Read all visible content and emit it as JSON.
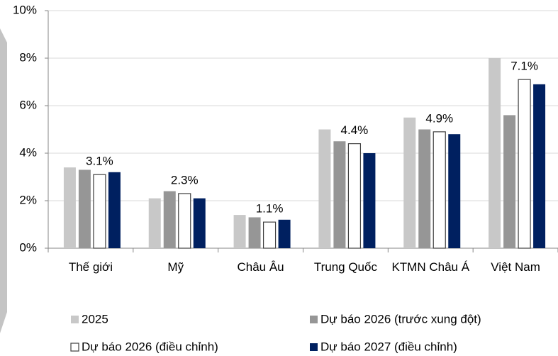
{
  "chart_data": {
    "type": "bar",
    "categories": [
      "Thế giới",
      "Mỹ",
      "Châu Âu",
      "Trung Quốc",
      "KTMN Châu Á",
      "Việt Nam"
    ],
    "series": [
      {
        "name": "2025",
        "color": "#c8c8c8",
        "values": [
          3.4,
          2.1,
          1.4,
          5.0,
          5.5,
          8.0
        ]
      },
      {
        "name": "Dự báo 2026 (trước xung đột)",
        "color": "#969696",
        "values": [
          3.3,
          2.4,
          1.3,
          4.5,
          5.0,
          5.6
        ]
      },
      {
        "name": "Dự báo 2026 (điều chỉnh)",
        "color": "#ffffff",
        "values": [
          3.1,
          2.3,
          1.1,
          4.4,
          4.9,
          7.1
        ],
        "value_labels": [
          "3.1%",
          "2.3%",
          "1.1%",
          "4.4%",
          "4.9%",
          "7.1%"
        ]
      },
      {
        "name": "Dự báo 2027 (điều chỉnh)",
        "color": "#002060",
        "values": [
          3.2,
          2.1,
          1.2,
          4.0,
          4.8,
          6.9
        ]
      }
    ],
    "ylim": [
      0,
      10
    ],
    "yticks": [
      {
        "value": 0,
        "label": "0%"
      },
      {
        "value": 2,
        "label": "2%"
      },
      {
        "value": 4,
        "label": "4%"
      },
      {
        "value": 6,
        "label": "6%"
      },
      {
        "value": 8,
        "label": "8%"
      },
      {
        "value": 10,
        "label": "10%"
      }
    ],
    "grid": true
  }
}
